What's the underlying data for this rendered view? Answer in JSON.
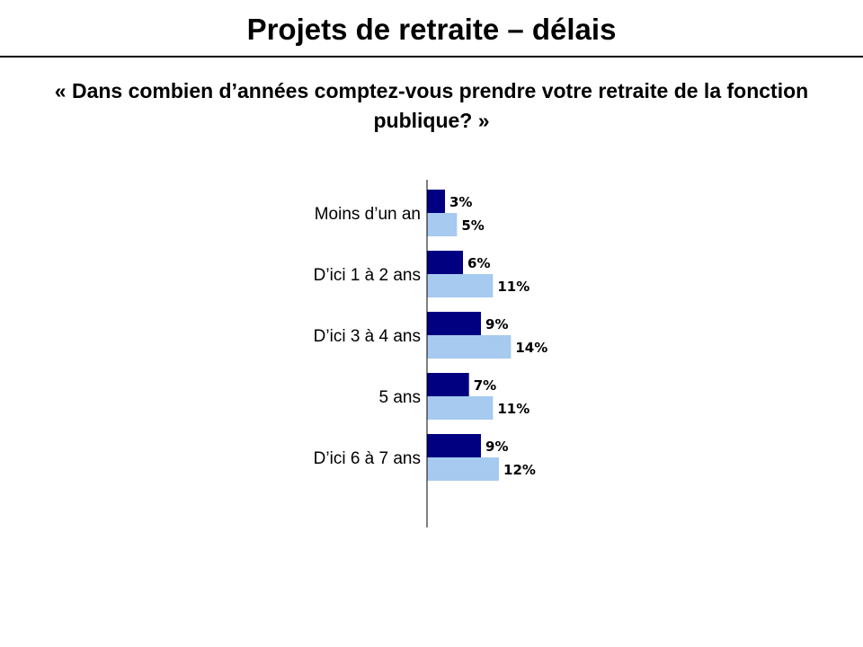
{
  "title": "Projets de retraite – délais",
  "subtitle": "« Dans combien d’années comptez-vous prendre votre retraite de la fonction publique? »",
  "colors": {
    "series1": "#000080",
    "series2": "#a6caf0"
  },
  "chart_data": {
    "type": "bar",
    "orientation": "horizontal",
    "categories": [
      "Moins d’un an",
      "D’ici 1 à 2 ans",
      "D’ici 3 à 4 ans",
      "5 ans",
      "D’ici 6 à 7 ans"
    ],
    "series": [
      {
        "values": [
          3,
          6,
          9,
          7,
          9
        ],
        "labels": [
          "3%",
          "6%",
          "9%",
          "7%",
          "9%"
        ],
        "color": "#000080"
      },
      {
        "values": [
          5,
          11,
          14,
          11,
          12
        ],
        "labels": [
          "5%",
          "11%",
          "14%",
          "11%",
          "12%"
        ],
        "color": "#a6caf0"
      }
    ],
    "xlim": [
      0,
      100
    ],
    "grid": false
  }
}
